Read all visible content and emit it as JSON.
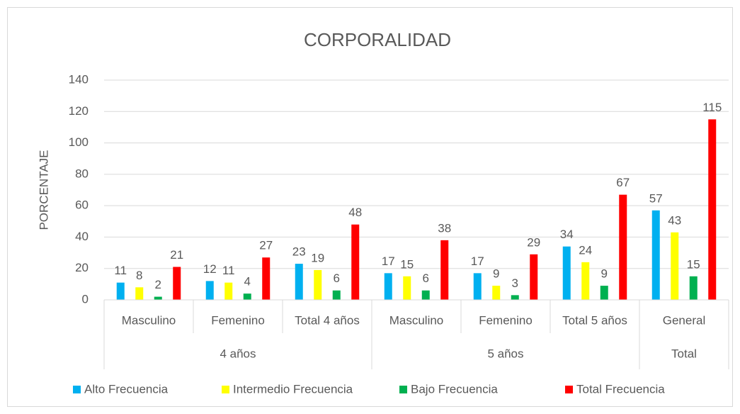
{
  "chart_data": {
    "type": "bar",
    "title": "CORPORALIDAD",
    "y_label": "PORCENTAJE",
    "groups": [
      {
        "name": "4 años",
        "categories": [
          "Masculino",
          "Femenino",
          "Total 4 años"
        ]
      },
      {
        "name": "5 años",
        "categories": [
          "Masculino",
          "Femenino",
          "Total 5 años"
        ]
      },
      {
        "name": "Total",
        "categories": [
          "General"
        ]
      }
    ],
    "series": [
      {
        "name": "Alto Frecuencia",
        "color": "#00b0f0",
        "values": [
          11,
          12,
          23,
          17,
          17,
          34,
          57
        ]
      },
      {
        "name": "Intermedio Frecuencia",
        "color": "#ffff00",
        "values": [
          8,
          11,
          19,
          15,
          9,
          24,
          43
        ]
      },
      {
        "name": "Bajo Frecuencia",
        "color": "#00b050",
        "values": [
          2,
          4,
          6,
          6,
          3,
          9,
          15
        ]
      },
      {
        "name": "Total Frecuencia",
        "color": "#ff0000",
        "values": [
          21,
          27,
          48,
          38,
          29,
          67,
          115
        ]
      }
    ],
    "ylim": [
      0,
      140
    ],
    "yticks": [
      0,
      20,
      40,
      60,
      80,
      100,
      120,
      140
    ],
    "grid": true,
    "legend": "bottom"
  }
}
